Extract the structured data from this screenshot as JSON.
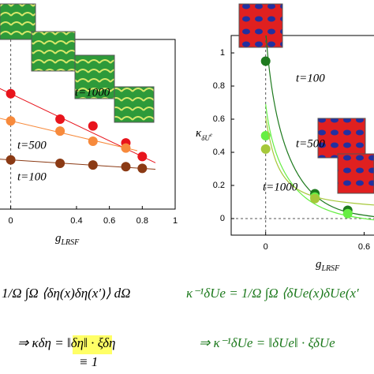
{
  "chart_data": [
    {
      "type": "scatter",
      "xlabel": "g",
      "xlabel_sub": "LRSF",
      "x": [
        0,
        0.3,
        0.5,
        0.7,
        0.8
      ],
      "xlim": [
        -0.07,
        1
      ],
      "xticks": [
        0,
        0.4,
        0.6,
        0.8,
        1
      ],
      "ylim": [
        0,
        1
      ],
      "series": [
        {
          "name": "t=1000",
          "color": "#e8141c",
          "values": [
            0.68,
            0.53,
            0.49,
            0.39,
            0.31
          ]
        },
        {
          "name": "t=500",
          "color": "#f78a3c",
          "values": [
            0.52,
            0.46,
            0.4,
            0.36,
            null
          ]
        },
        {
          "name": "t=100",
          "color": "#8b3a14",
          "values": [
            0.29,
            0.27,
            0.26,
            0.25,
            0.24
          ]
        }
      ]
    },
    {
      "type": "scatter",
      "xlabel": "g",
      "xlabel_sub": "LRSF",
      "ylabel": "κ",
      "ylabel_sub": "δU",
      "ylabel_sup": "e",
      "x": [
        0,
        0.3,
        0.5
      ],
      "xlim": [
        -0.21,
        0.66
      ],
      "xticks": [
        0,
        0.6
      ],
      "ylim": [
        -0.1,
        1.105
      ],
      "yticks": [
        0,
        0.2,
        0.4,
        0.6,
        0.8,
        1
      ],
      "series": [
        {
          "name": "t=100",
          "color": "#1e7a1e",
          "values": [
            0.95,
            0.15,
            0.05
          ]
        },
        {
          "name": "t=500",
          "color": "#66ee44",
          "values": [
            0.5,
            0.13,
            0.03
          ]
        },
        {
          "name": "t=1000",
          "color": "#a6c83a",
          "values": [
            0.42,
            0.12,
            null
          ]
        }
      ]
    }
  ],
  "equations": {
    "left_integral": "1/Ω ∫Ω ⟨δη(x)δη(x′)⟩ dΩ",
    "left_result": "⇒ κδη = ‖δη‖ · ξδη",
    "left_note": "≡ 1",
    "right_integral": "κ⁻¹δUe = 1/Ω ∫Ω ⟨δUe(x)δUe(x′",
    "right_result": "⇒ κ⁻¹δUe = ‖δUe‖ · ξδUe"
  }
}
